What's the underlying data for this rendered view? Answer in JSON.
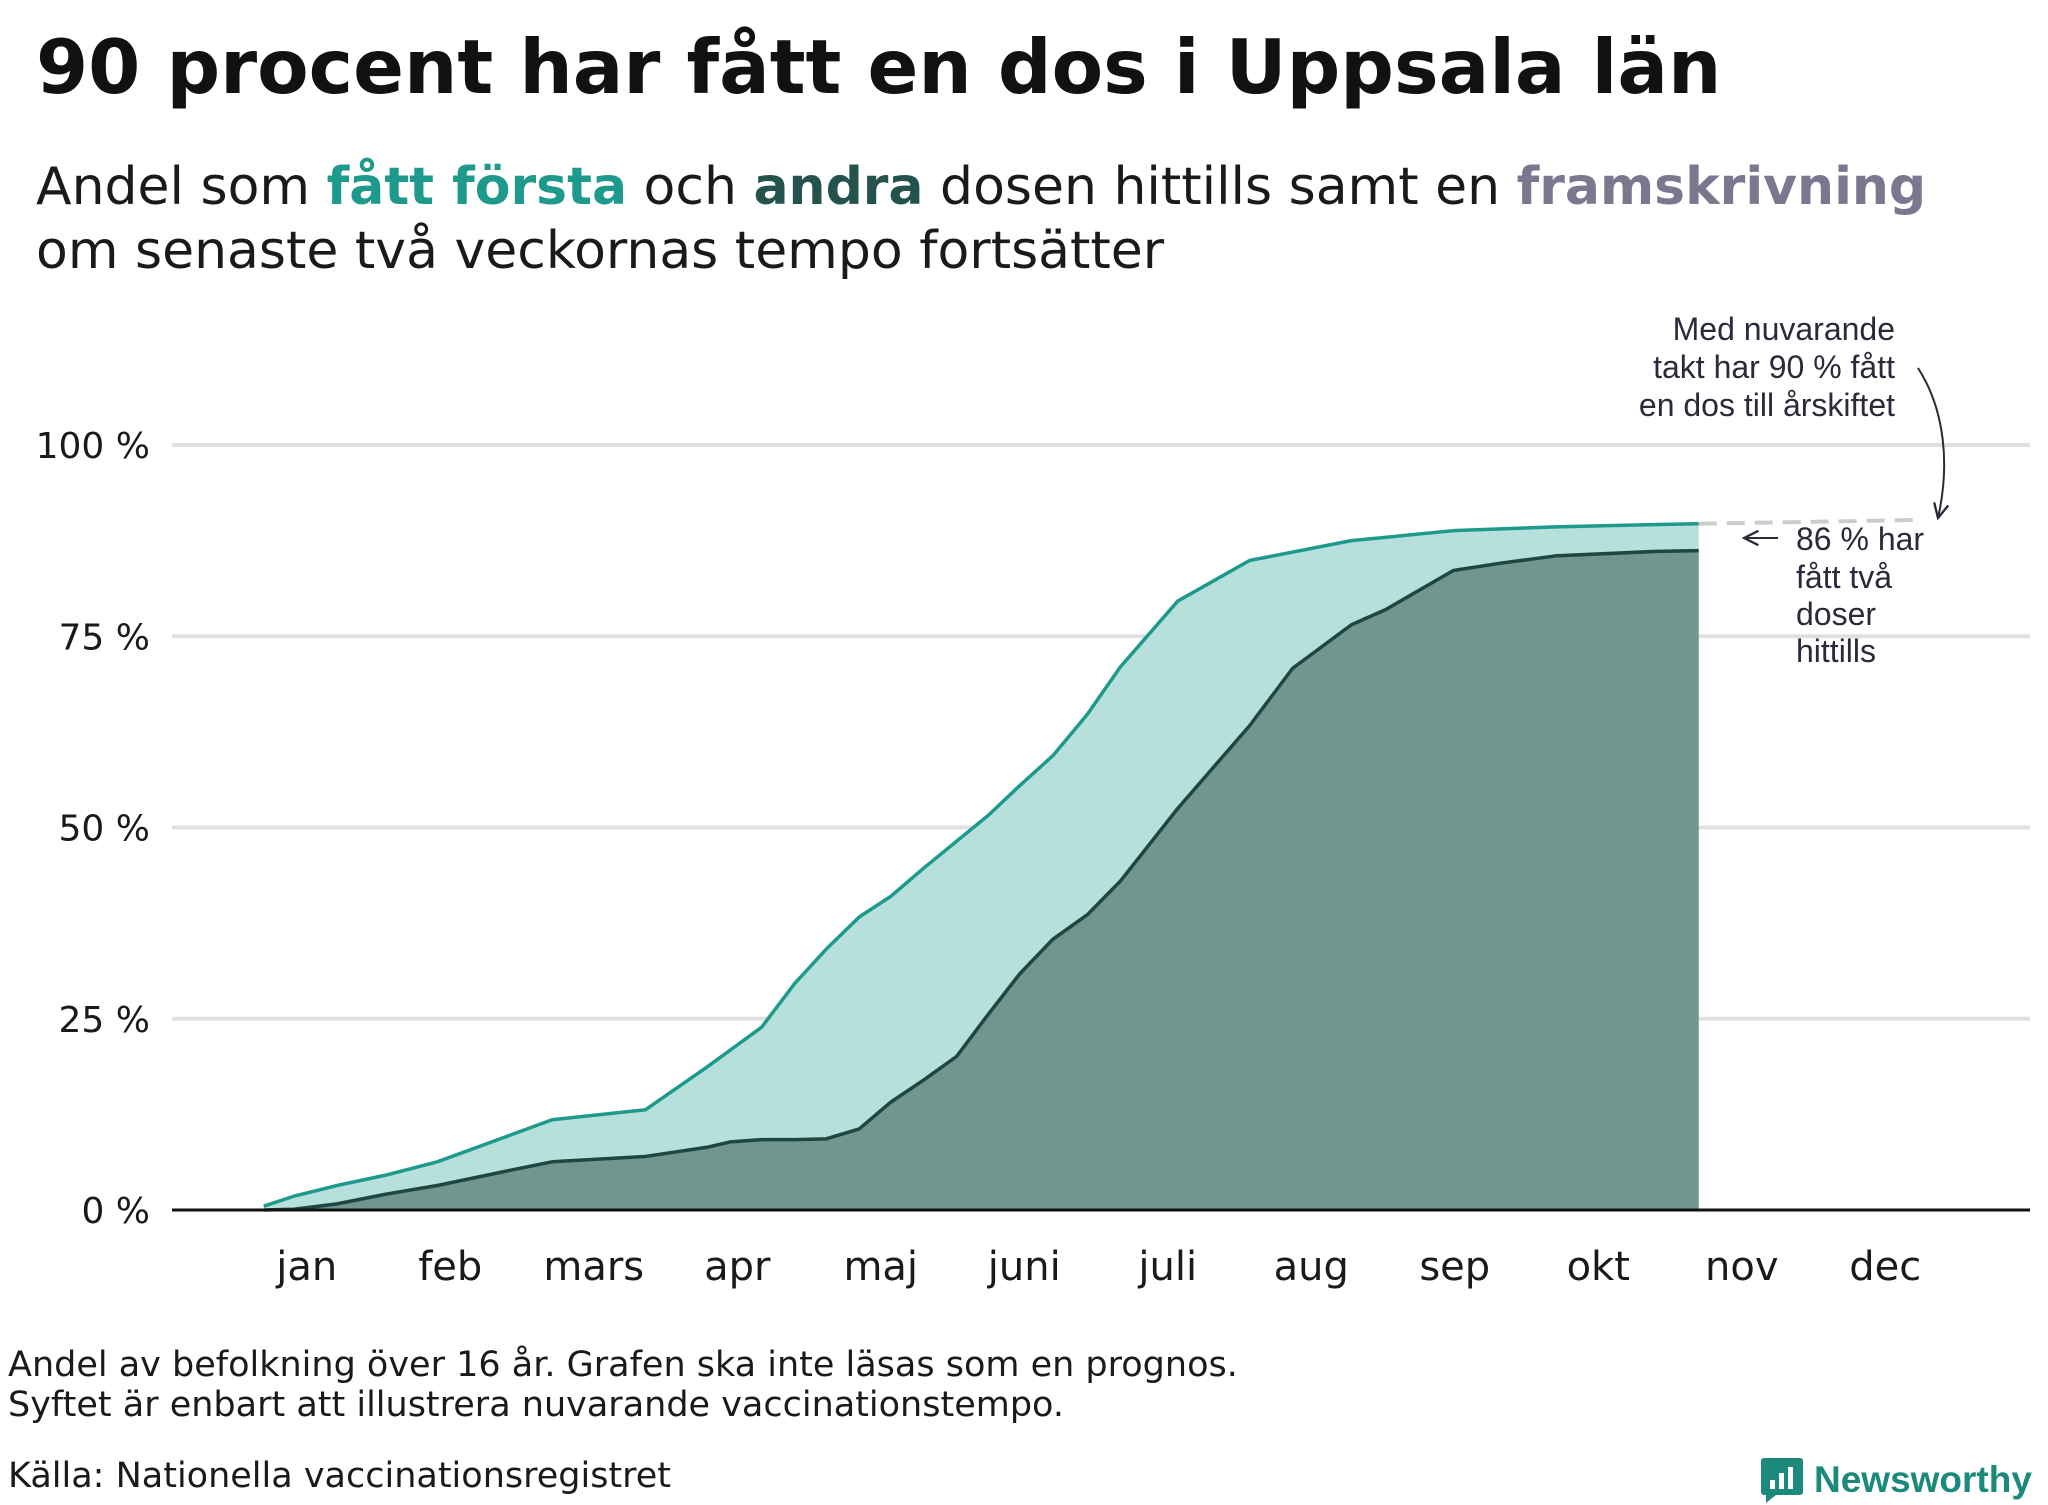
{
  "title": "90 procent har fått en dos i Uppsala län",
  "subtitle": {
    "prefix": "Andel som ",
    "first": "fått första",
    "mid1": " och ",
    "second": "andra",
    "mid2": " dosen hittills samt en ",
    "projection": "framskrivning",
    "suffix": " om senaste två veckornas tempo fortsätter"
  },
  "colors": {
    "first_line": "#1d9a8b",
    "first_fill": "#b7dfdc",
    "second_line": "#1f4741",
    "second_fill": "#6f968f",
    "projection": "#cccccc",
    "grid": "#e0e0e0",
    "axis": "#111111"
  },
  "chart_data": {
    "type": "area",
    "ylim": [
      0,
      100
    ],
    "xlim": [
      0,
      12
    ],
    "yticks": [
      0,
      25,
      50,
      75,
      100
    ],
    "ytick_labels": [
      "0 %",
      "25 %",
      "50 %",
      "75 %",
      "100 %"
    ],
    "months": [
      "jan",
      "feb",
      "mars",
      "apr",
      "maj",
      "juni",
      "juli",
      "aug",
      "sep",
      "okt",
      "nov",
      "dec"
    ],
    "series": [
      {
        "name": "fått första",
        "x": [
          0.2,
          0.41,
          0.71,
          1.06,
          1.41,
          1.92,
          2.21,
          2.86,
          3.29,
          3.67,
          3.9,
          4.12,
          4.35,
          4.57,
          4.8,
          5.25,
          5.47,
          5.7,
          5.94,
          6.17,
          6.57,
          7.07,
          7.78,
          8.49,
          9.2,
          9.91,
          10.2
        ],
        "y": [
          0.5,
          1.8,
          3.2,
          4.6,
          6.3,
          9.8,
          11.8,
          13.1,
          18.7,
          23.9,
          29.6,
          34.1,
          38.3,
          41.0,
          44.7,
          51.6,
          55.5,
          59.4,
          64.8,
          71.0,
          79.6,
          84.9,
          87.5,
          88.8,
          89.3,
          89.6,
          89.7
        ]
      },
      {
        "name": "andra",
        "x": [
          0.2,
          0.41,
          0.71,
          1.06,
          1.41,
          1.92,
          2.21,
          2.86,
          3.29,
          3.45,
          3.67,
          3.9,
          4.12,
          4.35,
          4.57,
          4.8,
          5.03,
          5.25,
          5.47,
          5.7,
          5.94,
          6.17,
          6.57,
          7.07,
          7.37,
          7.78,
          8.02,
          8.49,
          8.8,
          9.2,
          9.91,
          10.2
        ],
        "y": [
          0.0,
          0.1,
          0.8,
          2.1,
          3.2,
          5.2,
          6.3,
          7.0,
          8.2,
          8.9,
          9.2,
          9.2,
          9.3,
          10.6,
          14.1,
          17.0,
          20.1,
          25.6,
          30.9,
          35.4,
          38.6,
          43.0,
          52.5,
          63.3,
          70.8,
          76.5,
          78.5,
          83.6,
          84.5,
          85.5,
          86.1,
          86.2
        ]
      },
      {
        "name": "framskrivning",
        "x": [
          10.2,
          11.71
        ],
        "y": [
          89.7,
          90.2
        ]
      }
    ]
  },
  "annotations": {
    "projection_note": [
      "Med nuvarande",
      "takt har 90 % fått",
      "en dos till årskiftet"
    ],
    "second_dose_note": [
      "86 % har",
      "fått två",
      "doser",
      "hittills"
    ]
  },
  "footnotes": {
    "line1": "Andel av befolkning över 16 år. Grafen ska inte läsas som en prognos.",
    "line2": "Syftet är enbart att illustrera nuvarande vaccinationstempo.",
    "source": "Källa: Nationella vaccinationsregistret"
  },
  "logo": {
    "text": "Newsworthy",
    "icon": "newsworthy-chart-icon"
  }
}
